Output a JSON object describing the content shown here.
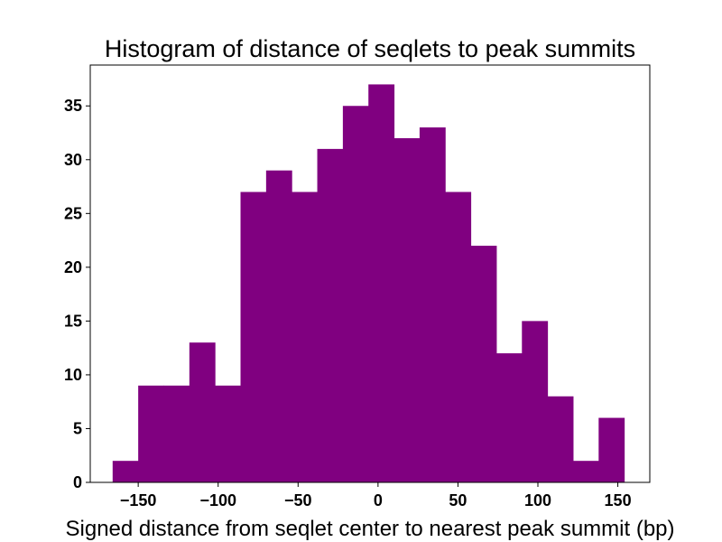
{
  "chart_data": {
    "type": "bar",
    "title": "Histogram of distance of seqlets to peak summits",
    "xlabel": "Signed distance from seqlet center to nearest peak summit (bp)",
    "ylabel": "",
    "bin_edges": [
      -166,
      -150,
      -134,
      -118,
      -102,
      -86,
      -70,
      -54,
      -38,
      -22,
      -6,
      10,
      26,
      42,
      58,
      74,
      90,
      106,
      122,
      138,
      154
    ],
    "values": [
      2,
      9,
      9,
      13,
      9,
      27,
      29,
      27,
      31,
      35,
      37,
      32,
      33,
      27,
      22,
      12,
      15,
      8,
      2,
      6
    ],
    "xlim": [
      -180,
      170
    ],
    "ylim": [
      0,
      38.8
    ],
    "xticks": [
      -150,
      -100,
      -50,
      0,
      50,
      100,
      150
    ],
    "xtick_labels": [
      "−150",
      "−100",
      "−50",
      "0",
      "50",
      "100",
      "150"
    ],
    "yticks": [
      0,
      5,
      10,
      15,
      20,
      25,
      30,
      35
    ],
    "ytick_labels": [
      "0",
      "5",
      "10",
      "15",
      "20",
      "25",
      "30",
      "35"
    ],
    "bar_color": "#800080",
    "grid": false,
    "legend": "none"
  }
}
